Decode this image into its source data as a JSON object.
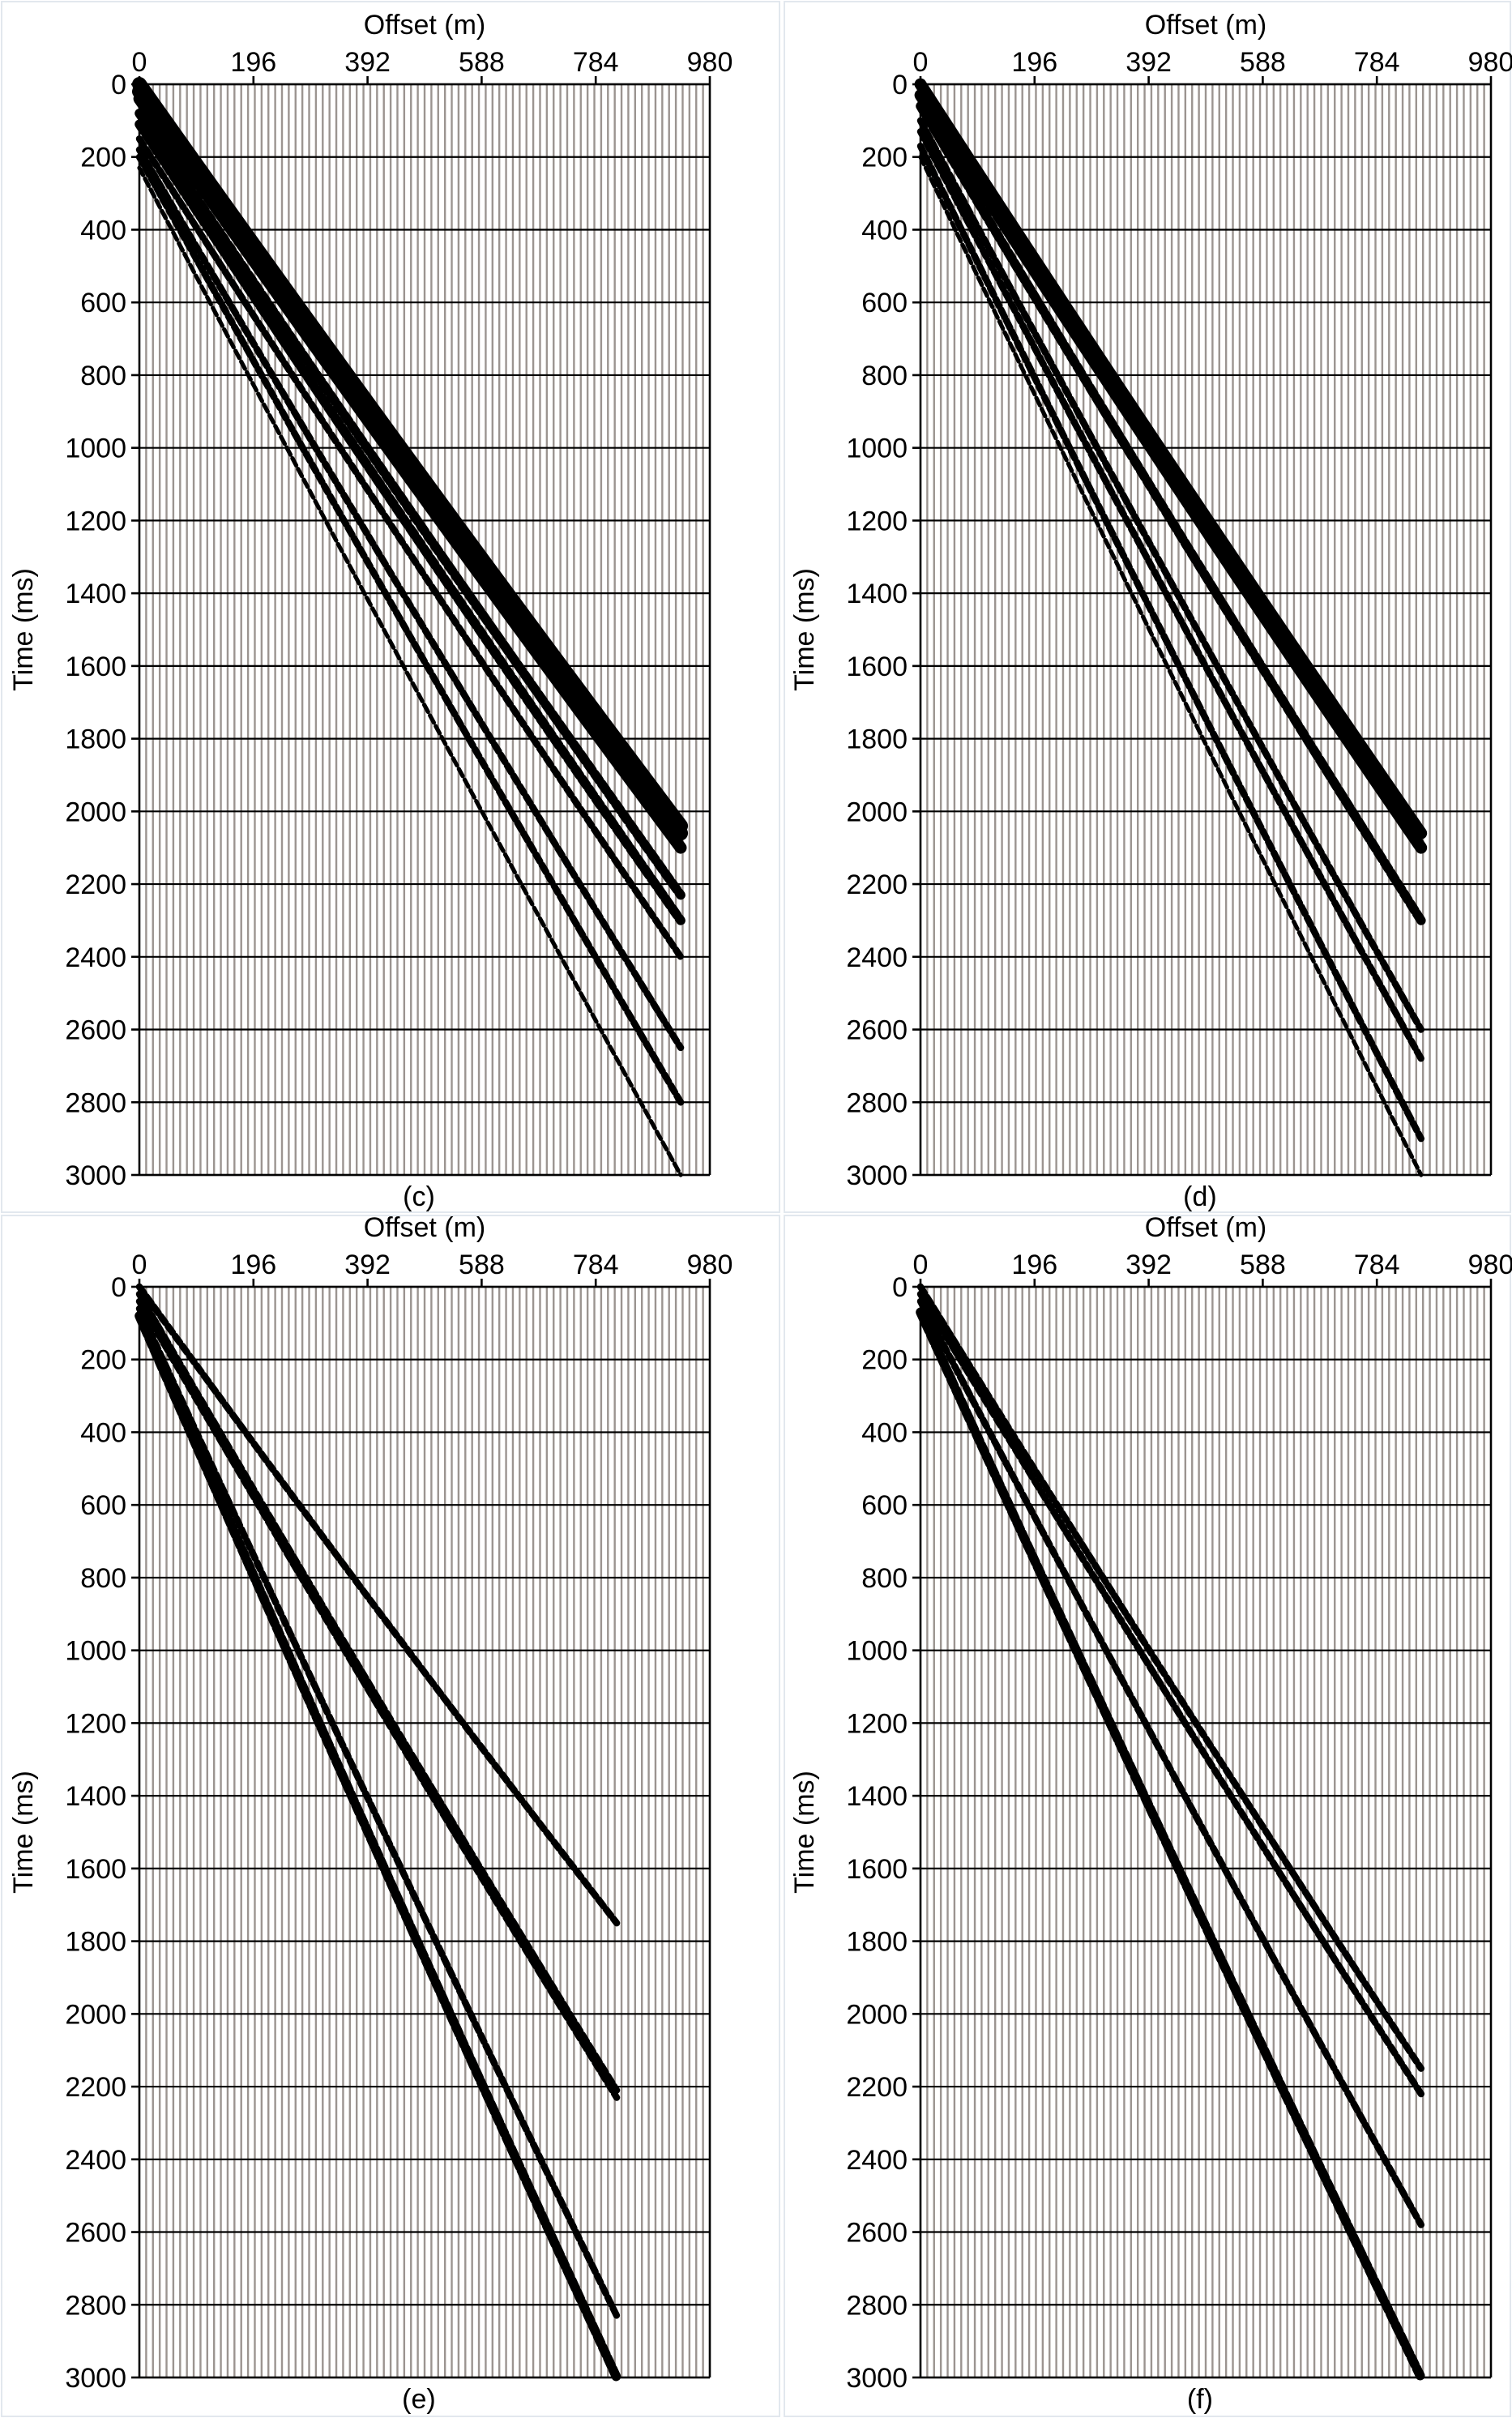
{
  "figure": {
    "background": "#ffffff",
    "trace_color": "#9b9490",
    "ink_color": "#000000"
  },
  "chart_data": [
    {
      "type": "seismic-gather",
      "panel_label": "(c)",
      "xlabel": "Offset (m)",
      "ylabel": "Time (ms)",
      "xlim": [
        0,
        980
      ],
      "ylim": [
        3000,
        0
      ],
      "x_ticks": [
        "0",
        "196",
        "392",
        "588",
        "784",
        "980"
      ],
      "y_ticks": [
        "0",
        "200",
        "400",
        "600",
        "800",
        "1000",
        "1200",
        "1400",
        "1600",
        "1800",
        "2000",
        "2200",
        "2400",
        "2600",
        "2800",
        "3000"
      ],
      "max_offset_m": 930,
      "arrivals": [
        {
          "t0_ms": 0,
          "t_end_ms": 2040,
          "strength": 5
        },
        {
          "t0_ms": 20,
          "t_end_ms": 2060,
          "strength": 5
        },
        {
          "t0_ms": 40,
          "t_end_ms": 2100,
          "strength": 4
        },
        {
          "t0_ms": 80,
          "t_end_ms": 2230,
          "strength": 3
        },
        {
          "t0_ms": 110,
          "t_end_ms": 2300,
          "strength": 3
        },
        {
          "t0_ms": 150,
          "t_end_ms": 2400,
          "strength": 2
        },
        {
          "t0_ms": 180,
          "t_end_ms": 2650,
          "strength": 2
        },
        {
          "t0_ms": 200,
          "t_end_ms": 2800,
          "strength": 2
        },
        {
          "t0_ms": 230,
          "t_end_ms": 3000,
          "strength": 1
        }
      ]
    },
    {
      "type": "seismic-gather",
      "panel_label": "(d)",
      "xlabel": "Offset (m)",
      "ylabel": "Time (ms)",
      "xlim": [
        0,
        980
      ],
      "ylim": [
        3000,
        0
      ],
      "x_ticks": [
        "0",
        "196",
        "392",
        "588",
        "784",
        "980"
      ],
      "y_ticks": [
        "0",
        "200",
        "400",
        "600",
        "800",
        "1000",
        "1200",
        "1400",
        "1600",
        "1800",
        "2000",
        "2200",
        "2400",
        "2600",
        "2800",
        "3000"
      ],
      "max_offset_m": 860,
      "arrivals": [
        {
          "t0_ms": 0,
          "t_end_ms": 2060,
          "strength": 4
        },
        {
          "t0_ms": 30,
          "t_end_ms": 2100,
          "strength": 4
        },
        {
          "t0_ms": 60,
          "t_end_ms": 2300,
          "strength": 3
        },
        {
          "t0_ms": 100,
          "t_end_ms": 2600,
          "strength": 2
        },
        {
          "t0_ms": 130,
          "t_end_ms": 2680,
          "strength": 2
        },
        {
          "t0_ms": 170,
          "t_end_ms": 2900,
          "strength": 2
        },
        {
          "t0_ms": 200,
          "t_end_ms": 3000,
          "strength": 1
        }
      ]
    },
    {
      "type": "seismic-gather",
      "panel_label": "(e)",
      "xlabel": "Offset (m)",
      "ylabel": "Time (ms)",
      "xlim": [
        0,
        980
      ],
      "ylim": [
        3000,
        0
      ],
      "x_ticks": [
        "0",
        "196",
        "392",
        "588",
        "784",
        "980"
      ],
      "y_ticks": [
        "0",
        "200",
        "400",
        "600",
        "800",
        "1000",
        "1200",
        "1400",
        "1600",
        "1800",
        "2000",
        "2200",
        "2400",
        "2600",
        "2800",
        "3000"
      ],
      "max_offset_m": 820,
      "arrivals": [
        {
          "t0_ms": 0,
          "t_end_ms": 1750,
          "strength": 2
        },
        {
          "t0_ms": 20,
          "t_end_ms": 2210,
          "strength": 2
        },
        {
          "t0_ms": 40,
          "t_end_ms": 2230,
          "strength": 2
        },
        {
          "t0_ms": 60,
          "t_end_ms": 2830,
          "strength": 2
        },
        {
          "t0_ms": 80,
          "t_end_ms": 3000,
          "strength": 3
        }
      ]
    },
    {
      "type": "seismic-gather",
      "panel_label": "(f)",
      "xlabel": "Offset (m)",
      "ylabel": "Time (ms)",
      "xlim": [
        0,
        980
      ],
      "ylim": [
        3000,
        0
      ],
      "x_ticks": [
        "0",
        "196",
        "392",
        "588",
        "784",
        "980"
      ],
      "y_ticks": [
        "0",
        "200",
        "400",
        "600",
        "800",
        "1000",
        "1200",
        "1400",
        "1600",
        "1800",
        "2000",
        "2200",
        "2400",
        "2600",
        "2800",
        "3000"
      ],
      "max_offset_m": 860,
      "arrivals": [
        {
          "t0_ms": 0,
          "t_end_ms": 2150,
          "strength": 2
        },
        {
          "t0_ms": 20,
          "t_end_ms": 2220,
          "strength": 2
        },
        {
          "t0_ms": 40,
          "t_end_ms": 2580,
          "strength": 2
        },
        {
          "t0_ms": 70,
          "t_end_ms": 3000,
          "strength": 3
        }
      ]
    }
  ]
}
